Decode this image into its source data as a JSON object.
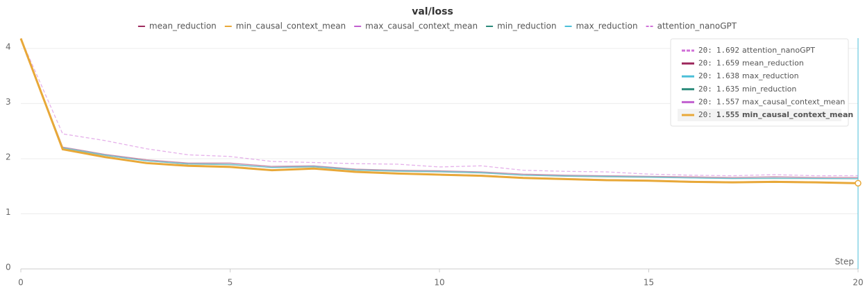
{
  "chart_data": {
    "type": "line",
    "title": "val/loss",
    "xlabel": "Step",
    "x": [
      0,
      1,
      2,
      3,
      4,
      5,
      6,
      7,
      8,
      9,
      10,
      11,
      12,
      13,
      14,
      15,
      16,
      17,
      18,
      19,
      20
    ],
    "xlim": [
      0,
      20
    ],
    "xticks": [
      0,
      5,
      10,
      15,
      20
    ],
    "ylim": [
      0,
      4.2
    ],
    "yticks": [
      0,
      1,
      2,
      3,
      4
    ],
    "grid": true,
    "series": [
      {
        "name": "mean_reduction",
        "color": "#9e2a5e",
        "values": [
          4.18,
          2.21,
          2.08,
          1.98,
          1.92,
          1.92,
          1.86,
          1.87,
          1.81,
          1.79,
          1.78,
          1.76,
          1.72,
          1.7,
          1.69,
          1.68,
          1.67,
          1.66,
          1.67,
          1.66,
          1.659
        ]
      },
      {
        "name": "min_causal_context_mean",
        "color": "#e8a838",
        "values": [
          4.18,
          2.17,
          2.03,
          1.92,
          1.87,
          1.85,
          1.79,
          1.82,
          1.76,
          1.73,
          1.71,
          1.69,
          1.65,
          1.63,
          1.61,
          1.6,
          1.58,
          1.57,
          1.58,
          1.57,
          1.555
        ]
      },
      {
        "name": "max_causal_context_mean",
        "color": "#c15fcf",
        "values": [
          4.18,
          2.18,
          2.04,
          1.93,
          1.88,
          1.86,
          1.8,
          1.83,
          1.77,
          1.74,
          1.72,
          1.7,
          1.66,
          1.64,
          1.62,
          1.61,
          1.59,
          1.58,
          1.59,
          1.58,
          1.557
        ]
      },
      {
        "name": "min_reduction",
        "color": "#2a8a7a",
        "values": [
          4.18,
          2.19,
          2.06,
          1.96,
          1.9,
          1.89,
          1.84,
          1.85,
          1.79,
          1.77,
          1.76,
          1.74,
          1.7,
          1.68,
          1.67,
          1.66,
          1.65,
          1.64,
          1.64,
          1.64,
          1.635
        ]
      },
      {
        "name": "max_reduction",
        "color": "#4bbfd8",
        "values": [
          4.18,
          2.2,
          2.07,
          1.96,
          1.91,
          1.9,
          1.84,
          1.86,
          1.8,
          1.78,
          1.77,
          1.75,
          1.7,
          1.69,
          1.68,
          1.67,
          1.65,
          1.64,
          1.65,
          1.64,
          1.638
        ]
      },
      {
        "name": "attention_nanoGPT",
        "color": "#d070d8",
        "dash": true,
        "values": [
          4.18,
          2.45,
          2.33,
          2.18,
          2.07,
          2.04,
          1.95,
          1.93,
          1.91,
          1.9,
          1.85,
          1.87,
          1.79,
          1.77,
          1.76,
          1.72,
          1.7,
          1.69,
          1.71,
          1.69,
          1.692
        ]
      }
    ],
    "highlight": "min_causal_context_mean",
    "tooltip": [
      {
        "step": "20:",
        "value": "1.692",
        "name": "attention_nanoGPT",
        "color": "#d070d8",
        "dash": true
      },
      {
        "step": "20:",
        "value": "1.659",
        "name": "mean_reduction",
        "color": "#9e2a5e"
      },
      {
        "step": "20:",
        "value": "1.638",
        "name": "max_reduction",
        "color": "#4bbfd8"
      },
      {
        "step": "20:",
        "value": "1.635",
        "name": "min_reduction",
        "color": "#2a8a7a"
      },
      {
        "step": "20:",
        "value": "1.557",
        "name": "max_causal_context_mean",
        "color": "#c15fcf"
      },
      {
        "step": "20:",
        "value": "1.555",
        "name": "min_causal_context_mean",
        "color": "#e8a838"
      }
    ]
  }
}
